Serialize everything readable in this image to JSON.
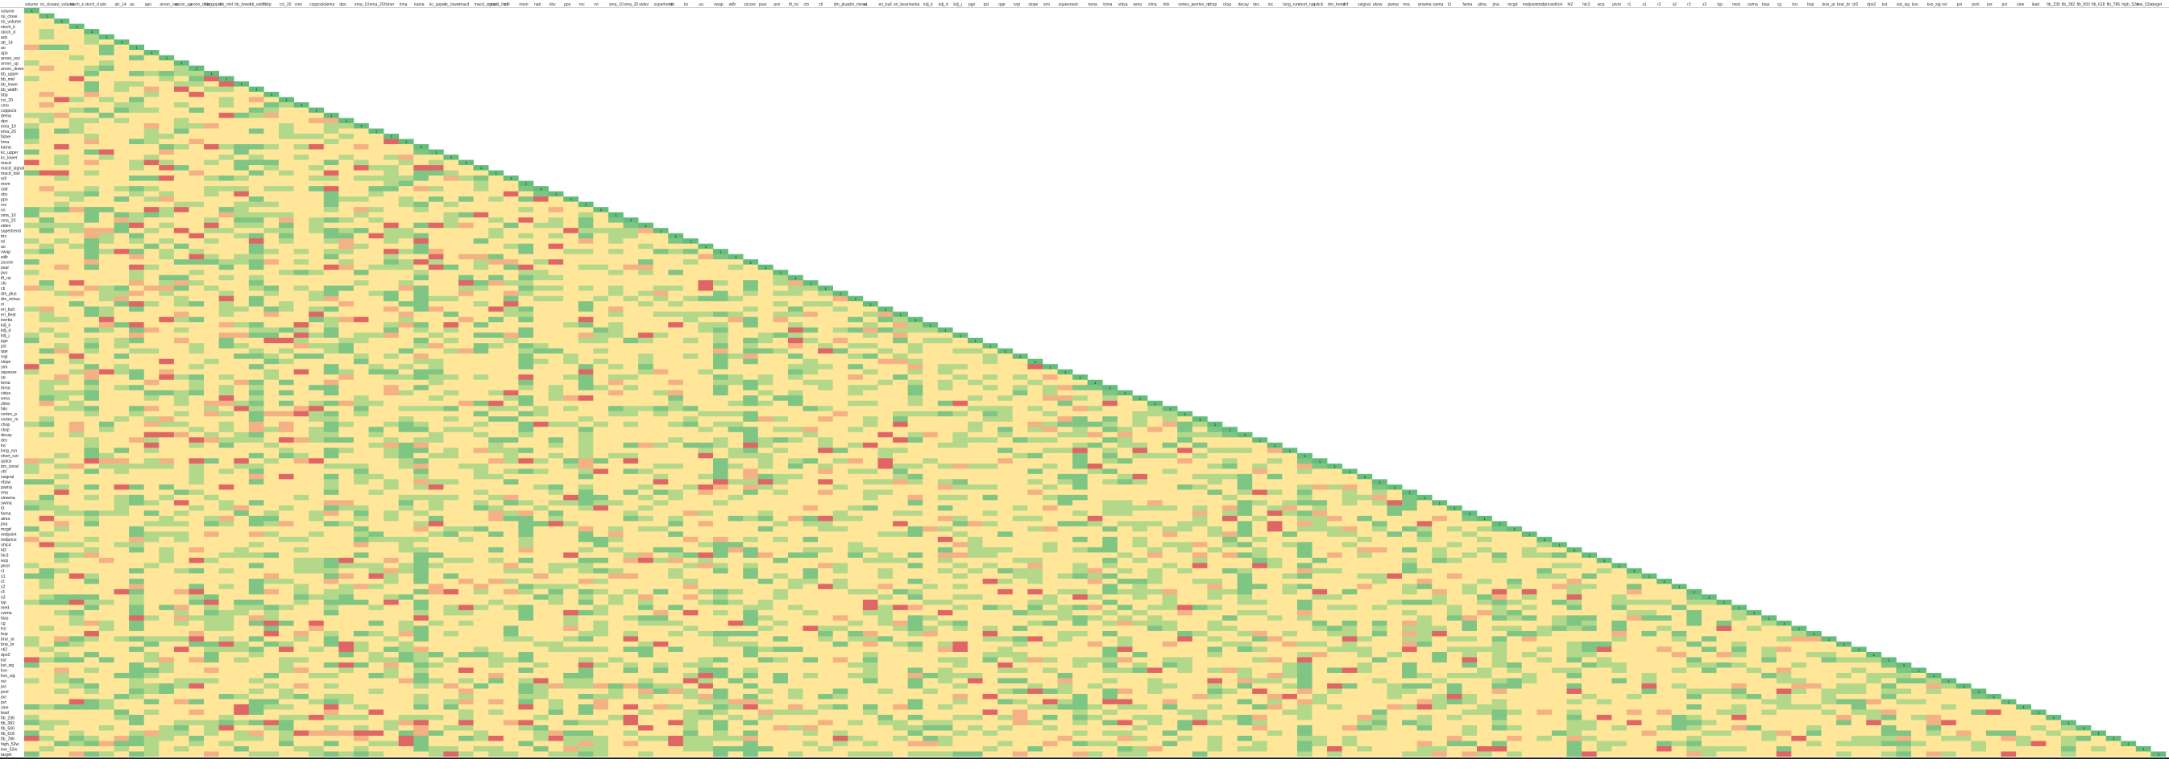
{
  "sheet": {
    "column_headers": [
      "volume",
      "rsi_close",
      "rsi_volume",
      "stoch_k",
      "stoch_d",
      "adx",
      "atr_14",
      "ao",
      "apo",
      "aroon_osc",
      "aroon_up",
      "aroon_down",
      "bb_upper",
      "bb_mid",
      "bb_lower",
      "bb_width",
      "bbp",
      "cci_20",
      "cmo",
      "coppock",
      "dema",
      "dpo",
      "ema_10",
      "ema_20",
      "fisher",
      "hma",
      "kama",
      "kc_upper",
      "kc_lower",
      "macd",
      "macd_signal",
      "macd_hist",
      "mfi",
      "mom",
      "natr",
      "obv",
      "ppo",
      "roc",
      "rvi",
      "sma_10",
      "sma_20",
      "stdev",
      "supertrend",
      "trix",
      "tsi",
      "uo",
      "vwap",
      "willr",
      "zscore",
      "psar",
      "pvo",
      "ift_rsi",
      "cfo",
      "cti",
      "dm_plus",
      "dm_minus",
      "er",
      "eri_bull",
      "eri_bear",
      "inertia",
      "kdj_k",
      "kdj_d",
      "kdj_j",
      "pgo",
      "psl",
      "qqe",
      "rvgi",
      "slope",
      "smi",
      "squeeze",
      "stc",
      "tema",
      "trima",
      "vidya",
      "wma",
      "zlma",
      "hilo",
      "vortex_p",
      "vortex_m",
      "chop",
      "cksp",
      "decay",
      "dec",
      "inc",
      "long_run",
      "short_run",
      "qstick",
      "ttm_trend",
      "vhf",
      "xsignal",
      "ebsw",
      "pwma",
      "rma",
      "sinwma",
      "swma",
      "t3",
      "fwma",
      "alma",
      "jma",
      "mcgd",
      "midpoint",
      "midprice",
      "ohlc4",
      "hl2",
      "hlc3",
      "wcp",
      "pivot",
      "r1",
      "s1",
      "r2",
      "s2",
      "r3",
      "s3",
      "typ",
      "med",
      "cwma",
      "bias",
      "cg",
      "lrsi",
      "bop",
      "brar_ar",
      "brar_br",
      "cti2",
      "dpo2",
      "kst",
      "kst_sig",
      "kvo",
      "kvo_sig",
      "nvi",
      "pvi",
      "pvol",
      "pvr",
      "pvt",
      "sine",
      "lead",
      "fib_236",
      "fib_382",
      "fib_500",
      "fib_618",
      "fib_786",
      "high_52w",
      "low_52w",
      "target"
    ],
    "row_labels": [
      "volume",
      "rsi_close",
      "rsi_volume",
      "stoch_k",
      "stoch_d",
      "adx",
      "atr_14",
      "ao",
      "apo",
      "aroon_osc",
      "aroon_up",
      "aroon_down",
      "bb_upper",
      "bb_mid",
      "bb_lower",
      "bb_width",
      "bbp",
      "cci_20",
      "cmo",
      "coppock",
      "dema",
      "dpo",
      "ema_10",
      "ema_20",
      "fisher",
      "hma",
      "kama",
      "kc_upper",
      "kc_lower",
      "macd",
      "macd_signal",
      "macd_hist",
      "mfi",
      "mom",
      "natr",
      "obv",
      "ppo",
      "roc",
      "rvi",
      "sma_10",
      "sma_20",
      "stdev",
      "supertrend",
      "trix",
      "tsi",
      "uo",
      "vwap",
      "willr",
      "zscore",
      "psar",
      "pvo",
      "ift_rsi",
      "cfo",
      "cti",
      "dm_plus",
      "dm_minus",
      "er",
      "eri_bull",
      "eri_bear",
      "inertia",
      "kdj_k",
      "kdj_d",
      "kdj_j",
      "pgo",
      "psl",
      "qqe",
      "rvgi",
      "slope",
      "smi",
      "squeeze",
      "stc",
      "tema",
      "trima",
      "vidya",
      "wma",
      "zlma",
      "hilo",
      "vortex_p",
      "vortex_m",
      "chop",
      "cksp",
      "decay",
      "dec",
      "inc",
      "long_run",
      "short_run",
      "qstick",
      "ttm_trend",
      "vhf",
      "xsignal",
      "ebsw",
      "pwma",
      "rma",
      "sinwma",
      "swma",
      "t3",
      "fwma",
      "alma",
      "jma",
      "mcgd",
      "midpoint",
      "midprice",
      "ohlc4",
      "hl2",
      "hlc3",
      "wcp",
      "pivot",
      "r1",
      "s1",
      "r2",
      "s2",
      "r3",
      "s3",
      "typ",
      "med",
      "cwma",
      "bias",
      "cg",
      "lrsi",
      "bop",
      "brar_ar",
      "brar_br",
      "cti2",
      "dpo2",
      "kst",
      "kst_sig",
      "kvo",
      "kvo_sig",
      "nvi",
      "pvi",
      "pvol",
      "pvr",
      "pvt",
      "sine",
      "lead",
      "fib_236",
      "fib_382",
      "fib_500",
      "fib_618",
      "fib_786",
      "high_52w",
      "low_52w",
      "target"
    ],
    "diagonal_value": "1",
    "colors": {
      "diagonal": "#63be7b",
      "strong_positive": "#7fc583",
      "positive": "#b4d88a",
      "neutral": "#ffe699",
      "negative": "#f4b183",
      "strong_negative": "#e06666",
      "header_band": "#ffffff",
      "grid_line": "#e3d79a"
    }
  }
}
